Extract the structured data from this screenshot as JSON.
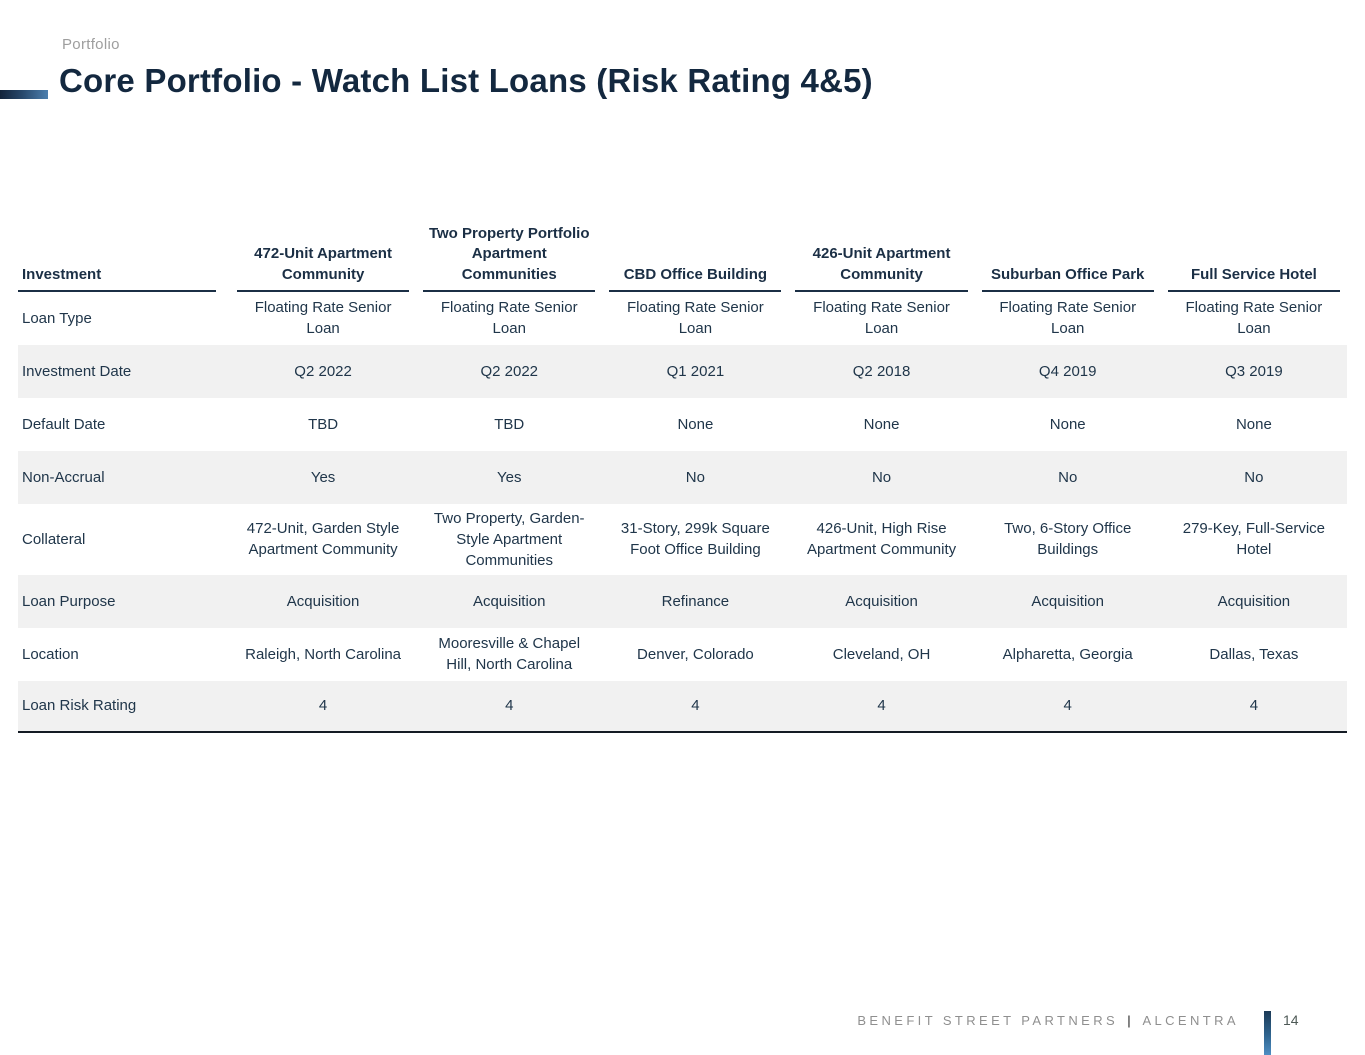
{
  "header": {
    "eyebrow": "Portfolio",
    "title": "Core Portfolio - Watch List Loans (Risk Rating 4&5)"
  },
  "table": {
    "row_header_label": "Investment",
    "columns": [
      "472-Unit Apartment Community",
      "Two Property Portfolio Apartment Communities",
      "CBD Office Building",
      "426-Unit Apartment Community",
      "Suburban Office Park",
      "Full Service Hotel"
    ],
    "rows": [
      {
        "label": "Loan Type",
        "values": [
          "Floating Rate Senior Loan",
          "Floating Rate Senior Loan",
          "Floating Rate Senior Loan",
          "Floating Rate Senior Loan",
          "Floating Rate Senior Loan",
          "Floating Rate Senior Loan"
        ]
      },
      {
        "label": "Investment Date",
        "values": [
          "Q2 2022",
          "Q2 2022",
          "Q1 2021",
          "Q2 2018",
          "Q4 2019",
          "Q3 2019"
        ]
      },
      {
        "label": "Default Date",
        "values": [
          "TBD",
          "TBD",
          "None",
          "None",
          "None",
          "None"
        ]
      },
      {
        "label": "Non-Accrual",
        "values": [
          "Yes",
          "Yes",
          "No",
          "No",
          "No",
          "No"
        ]
      },
      {
        "label": "Collateral",
        "values": [
          "472-Unit, Garden Style Apartment Community",
          "Two Property, Garden-Style Apartment Communities",
          "31-Story, 299k Square Foot Office Building",
          "426-Unit, High Rise Apartment Community",
          "Two, 6-Story Office Buildings",
          "279-Key, Full-Service Hotel"
        ]
      },
      {
        "label": "Loan Purpose",
        "values": [
          "Acquisition",
          "Acquisition",
          "Refinance",
          "Acquisition",
          "Acquisition",
          "Acquisition"
        ]
      },
      {
        "label": "Location",
        "values": [
          "Raleigh, North Carolina",
          "Mooresville & Chapel Hill, North Carolina",
          "Denver, Colorado",
          "Cleveland, OH",
          "Alpharetta, Georgia",
          "Dallas, Texas"
        ]
      },
      {
        "label": "Loan Risk Rating",
        "values": [
          "4",
          "4",
          "4",
          "4",
          "4",
          "4"
        ]
      }
    ]
  },
  "footer": {
    "brand_left": "BENEFIT STREET PARTNERS",
    "separator": "|",
    "brand_right": "ALCENTRA",
    "page_number": "14"
  },
  "colors": {
    "title_navy": "#13283f",
    "table_text": "#20364a",
    "header_rule": "#1b2f45",
    "stripe_gray": "#f1f1f1",
    "accent_dark": "#12233a",
    "accent_blue": "#4d7fae",
    "footer_gray": "#8f8f8f"
  }
}
